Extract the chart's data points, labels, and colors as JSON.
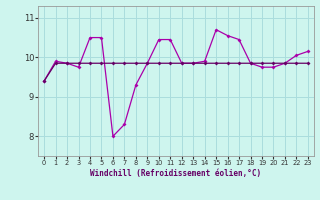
{
  "xlabel": "Windchill (Refroidissement éolien,°C)",
  "bg_color": "#cef5ee",
  "grid_color": "#aadddd",
  "line_color1": "#aa00aa",
  "line_color2": "#660066",
  "ylim": [
    7.5,
    11.3
  ],
  "xlim": [
    -0.5,
    23.5
  ],
  "yticks": [
    8,
    9,
    10,
    11
  ],
  "xticks": [
    0,
    1,
    2,
    3,
    4,
    5,
    6,
    7,
    8,
    9,
    10,
    11,
    12,
    13,
    14,
    15,
    16,
    17,
    18,
    19,
    20,
    21,
    22,
    23
  ],
  "series1_x": [
    0,
    1,
    2,
    3,
    4,
    5,
    6,
    7,
    8,
    9,
    10,
    11,
    12,
    13,
    14,
    15,
    16,
    17,
    18,
    19,
    20,
    21,
    22,
    23
  ],
  "series1_y": [
    9.4,
    9.85,
    9.85,
    9.85,
    9.85,
    9.85,
    9.85,
    9.85,
    9.85,
    9.85,
    9.85,
    9.85,
    9.85,
    9.85,
    9.85,
    9.85,
    9.85,
    9.85,
    9.85,
    9.85,
    9.85,
    9.85,
    9.85,
    9.85
  ],
  "series2_x": [
    0,
    1,
    2,
    3,
    4,
    5,
    6,
    7,
    8,
    9,
    10,
    11,
    12,
    13,
    14,
    15,
    16,
    17,
    18,
    19,
    20,
    21,
    22,
    23
  ],
  "series2_y": [
    9.4,
    9.9,
    9.85,
    9.75,
    10.5,
    10.5,
    8.0,
    8.3,
    9.3,
    9.85,
    10.45,
    10.45,
    9.85,
    9.85,
    9.9,
    10.7,
    10.55,
    10.45,
    9.85,
    9.75,
    9.75,
    9.85,
    10.05,
    10.15
  ]
}
